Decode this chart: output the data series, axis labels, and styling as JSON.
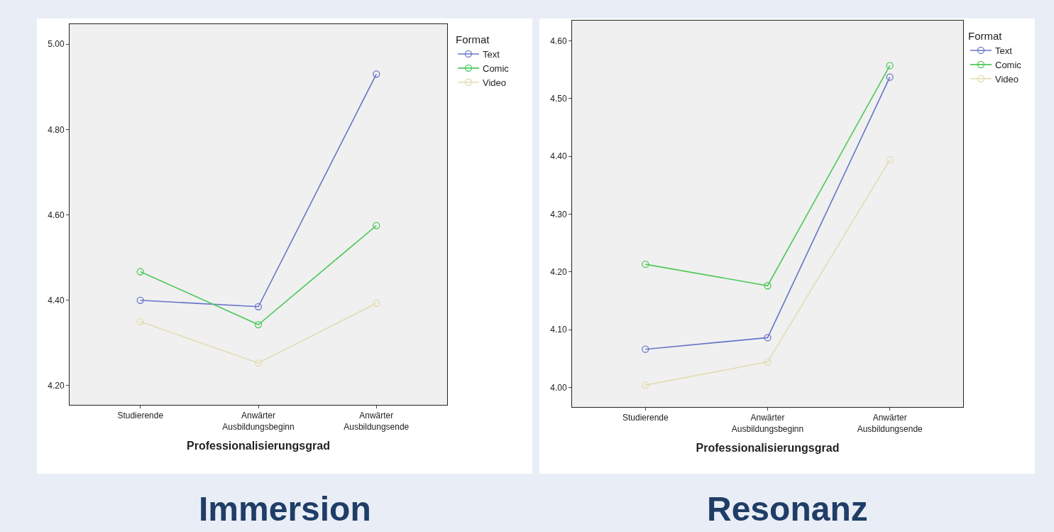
{
  "chart_data": [
    {
      "type": "line",
      "title": "Immersion",
      "xlabel": "Professionalisierungsgrad",
      "legend_title": "Format",
      "categories": [
        "Studierende",
        "Anwärter\nAusbildungsbeginn",
        "Anwärter\nAusbildungsende"
      ],
      "ylim": [
        4.155,
        5.047
      ],
      "yticks": [
        {
          "value": 4.2,
          "label": "4.20"
        },
        {
          "value": 4.4,
          "label": "4.40"
        },
        {
          "value": 4.6,
          "label": "4.60"
        },
        {
          "value": 4.8,
          "label": "4.80"
        },
        {
          "value": 5.0,
          "label": "5.00"
        }
      ],
      "grid": false,
      "legend": "top right",
      "marker": "circle",
      "line_style": "solid",
      "series": [
        {
          "name": "Text",
          "color": "#6676c8",
          "values": [
            4.4,
            4.385,
            4.93
          ]
        },
        {
          "name": "Comic",
          "color": "#4ec95a",
          "values": [
            4.467,
            4.343,
            4.575
          ]
        },
        {
          "name": "Video",
          "color": "#e2dcb2",
          "values": [
            4.35,
            4.253,
            4.393
          ]
        }
      ]
    },
    {
      "type": "line",
      "title": "Resonanz",
      "xlabel": "Professionalisierungsgrad",
      "legend_title": "Format",
      "categories": [
        "Studierende",
        "Anwärter\nAusbildungsbeginn",
        "Anwärter\nAusbildungsende"
      ],
      "ylim": [
        3.966,
        4.635
      ],
      "yticks": [
        {
          "value": 4.0,
          "label": "4.00"
        },
        {
          "value": 4.1,
          "label": "4.10"
        },
        {
          "value": 4.2,
          "label": "4.20"
        },
        {
          "value": 4.3,
          "label": "4.30"
        },
        {
          "value": 4.4,
          "label": "4.40"
        },
        {
          "value": 4.5,
          "label": "4.50"
        },
        {
          "value": 4.6,
          "label": "4.60"
        }
      ],
      "grid": false,
      "legend": "top right",
      "marker": "circle",
      "line_style": "solid",
      "series": [
        {
          "name": "Text",
          "color": "#6676c8",
          "values": [
            4.066,
            4.086,
            4.537
          ]
        },
        {
          "name": "Comic",
          "color": "#4ec95a",
          "values": [
            4.213,
            4.176,
            4.557
          ]
        },
        {
          "name": "Video",
          "color": "#e2dcb2",
          "values": [
            4.004,
            4.044,
            4.394
          ]
        }
      ]
    }
  ]
}
